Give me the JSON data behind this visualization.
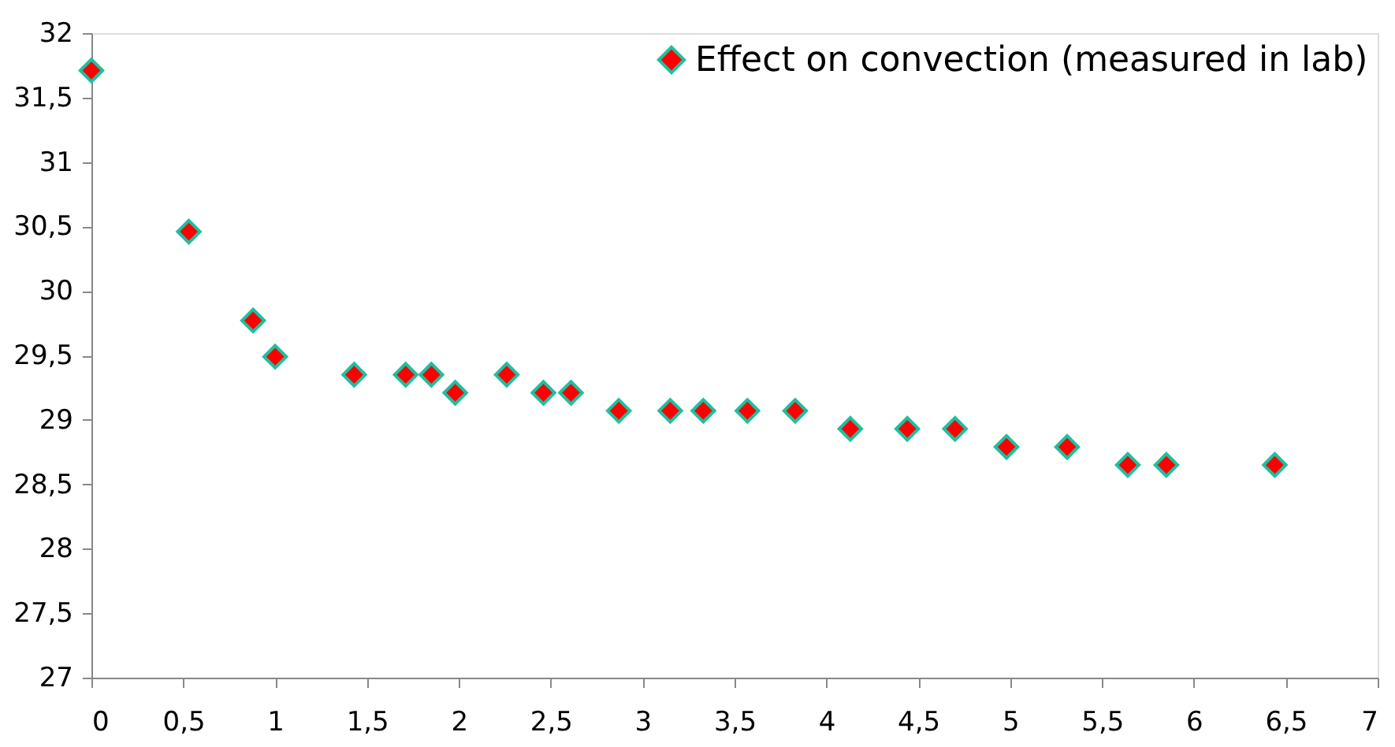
{
  "chart_data": {
    "type": "scatter",
    "x": [
      0,
      0.53,
      0.88,
      1.0,
      1.43,
      1.71,
      1.85,
      1.98,
      2.26,
      2.46,
      2.61,
      2.87,
      3.15,
      3.33,
      3.57,
      3.83,
      4.13,
      4.44,
      4.7,
      4.98,
      5.31,
      5.64,
      5.85,
      6.44
    ],
    "series": [
      {
        "name": "Effect on convection (measured in lab)",
        "color": "#ff0000",
        "values": [
          31.71,
          30.46,
          29.77,
          29.49,
          29.35,
          29.35,
          29.35,
          29.21,
          29.35,
          29.21,
          29.21,
          29.07,
          29.07,
          29.07,
          29.07,
          29.07,
          28.93,
          28.93,
          28.93,
          28.79,
          28.79,
          28.65,
          28.65,
          28.65
        ]
      }
    ],
    "xlim": [
      0,
      7
    ],
    "xticks": [
      0,
      {
        "value": 0.5,
        "label": "0,5"
      },
      1,
      {
        "value": 1.5,
        "label": "1,5"
      },
      2,
      {
        "value": 2.5,
        "label": "2,5"
      },
      3,
      {
        "value": 3.5,
        "label": "3,5"
      },
      4,
      {
        "value": 4.5,
        "label": "4,5"
      },
      5,
      {
        "value": 5.5,
        "label": "5,5"
      },
      6,
      {
        "value": 6.5,
        "label": "6,5"
      },
      7
    ],
    "ylim": [
      27,
      32
    ],
    "yticks": [
      27,
      {
        "value": 27.5,
        "label": "27,5"
      },
      28,
      {
        "value": 28.5,
        "label": "28,5"
      },
      29,
      {
        "value": 29.5,
        "label": "29,5"
      },
      30,
      {
        "value": 30.5,
        "label": "30,5"
      },
      31,
      {
        "value": 31.5,
        "label": "31,5"
      },
      32
    ],
    "marker": "diamond",
    "legend": "top right",
    "grid": false
  }
}
